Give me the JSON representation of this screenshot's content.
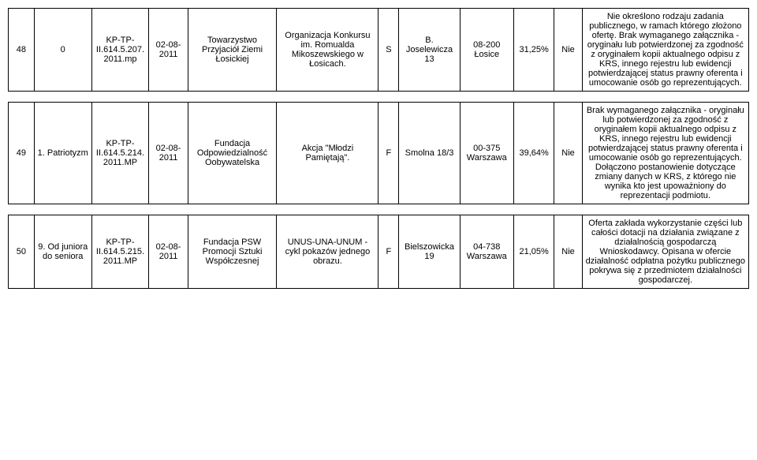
{
  "table": {
    "rows": [
      {
        "num": "48",
        "topic": "0",
        "ref": "KP-TP-II.614.5.207.2011.mp",
        "date": "02-08-2011",
        "org": "Towarzystwo Przyjaciół Ziemi Łosickiej",
        "project": "Organizacja Konkursu im. Romualda Mikoszewskiego w Łosicach.",
        "flag": "S",
        "street": "B. Joselewicza 13",
        "zip": "08-200 Łosice",
        "pct": "31,25%",
        "yesno": "Nie",
        "notes": "Nie określono rodzaju zadania publicznego, w ramach którego złożono ofertę. Brak wymaganego załącznika - oryginału lub potwierdzonej za zgodność z oryginałem kopii aktualnego odpisu z KRS, innego rejestru lub ewidencji potwierdzającej status prawny oferenta i umocowanie osób go reprezentujących."
      },
      {
        "num": "49",
        "topic": "1. Patriotyzm",
        "ref": "KP-TP-II.614.5.214.2011.MP",
        "date": "02-08-2011",
        "org": "Fundacja Odpowiedzialność Oobywatelska",
        "project": "Akcja \"Młodzi Pamiętają\".",
        "flag": "F",
        "street": "Smolna 18/3",
        "zip": "00-375 Warszawa",
        "pct": "39,64%",
        "yesno": "Nie",
        "notes": "Brak wymaganego załącznika - oryginału lub potwierdzonej za zgodność z oryginałem kopii aktualnego odpisu z KRS, innego rejestru lub ewidencji potwierdzającej status prawny oferenta i umocowanie osób go reprezentujących. Dołączono postanowienie dotyczące zmiany danych w KRS, z którego nie wynika kto jest upoważniony do reprezentacji podmiotu."
      },
      {
        "num": "50",
        "topic": "9. Od juniora do seniora",
        "ref": "KP-TP-II.614.5.215.2011.MP",
        "date": "02-08-2011",
        "org": "Fundacja PSW Promocji Sztuki Współczesnej",
        "project": "UNUS-UNA-UNUM - cykl pokazów jednego obrazu.",
        "flag": "F",
        "street": "Bielszowicka 19",
        "zip": "04-738 Warszawa",
        "pct": "21,05%",
        "yesno": "Nie",
        "notes": "Oferta zakłada wykorzystanie części lub całości dotacji na działania związane z działalnością gospodarczą Wnioskodawcy. Opisana w ofercie działalność odpłatna pożytku publicznego pokrywa się z przedmiotem działalności gospodarczej."
      }
    ]
  }
}
